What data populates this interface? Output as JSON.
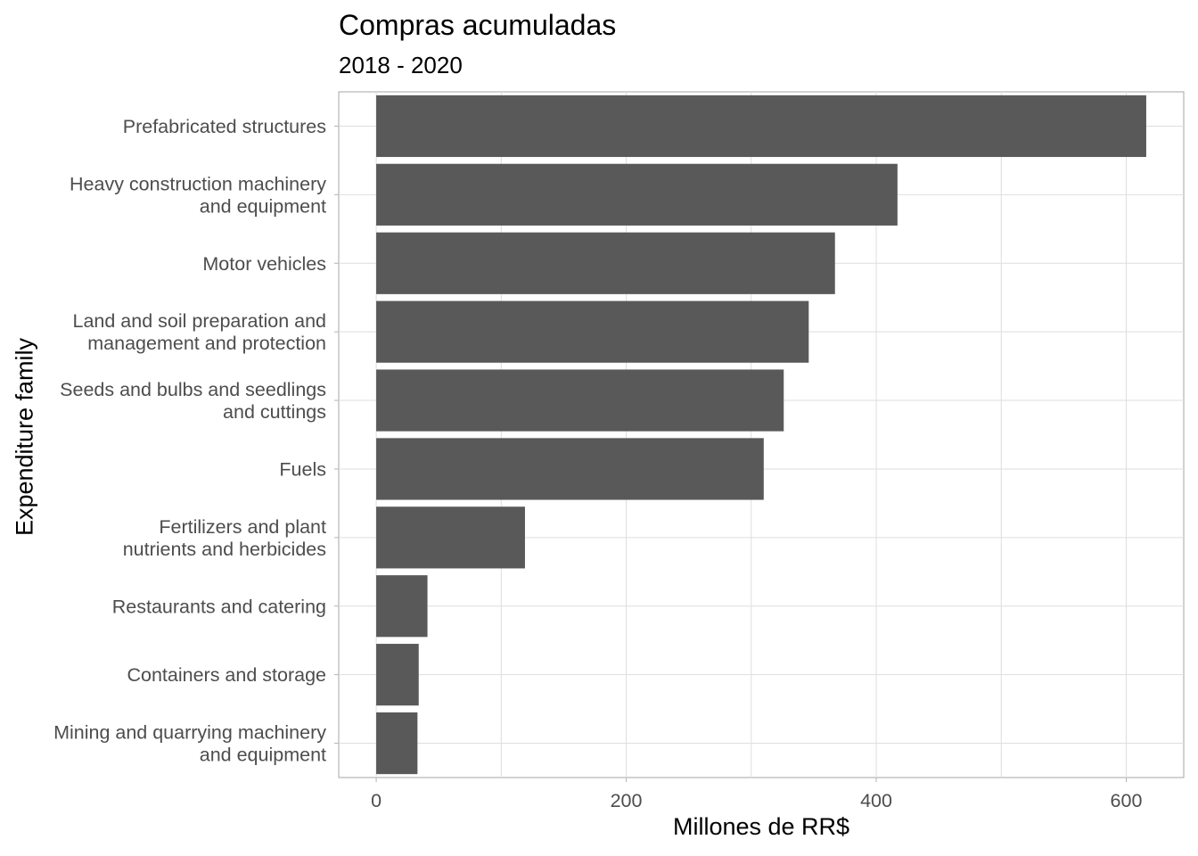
{
  "chart_data": {
    "type": "bar",
    "orientation": "horizontal",
    "title": "Compras acumuladas",
    "subtitle": "2018 - 2020",
    "xlabel": "Millones de RR$",
    "ylabel": "Expenditure family",
    "categories": [
      "Prefabricated structures",
      "Heavy construction machinery\nand equipment",
      "Motor vehicles",
      "Land and soil preparation and\nmanagement and protection",
      "Seeds and bulbs and seedlings\nand cuttings",
      "Fuels",
      "Fertilizers and plant\nnutrients and herbicides",
      "Restaurants and catering",
      "Containers and storage",
      "Mining and quarrying machinery\nand equipment"
    ],
    "values": [
      616,
      417,
      367,
      346,
      326,
      310,
      119,
      41,
      34,
      33
    ],
    "xlim": [
      -30,
      646
    ],
    "xticks": [
      0,
      200,
      400,
      600
    ],
    "grid": true,
    "legend": "none",
    "bar_color": "#595959"
  }
}
